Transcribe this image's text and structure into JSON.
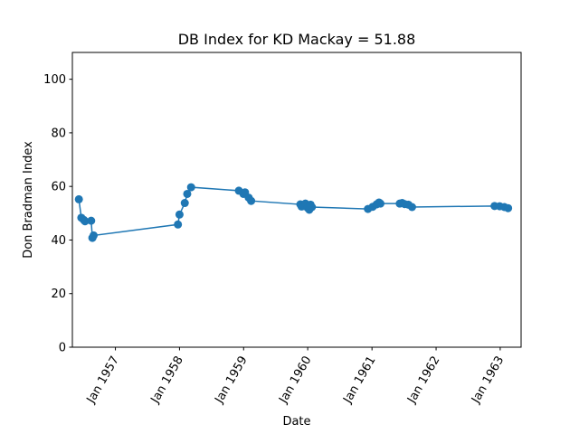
{
  "chart_data": {
    "type": "line",
    "title": "DB Index for KD Mackay = 51.88",
    "xlabel": "Date",
    "ylabel": "Don Bradman Index",
    "ylim": [
      0,
      110
    ],
    "xlim": [
      "1956-05-01",
      "1963-04-30"
    ],
    "yticks": [
      0,
      20,
      40,
      60,
      80,
      100
    ],
    "xticks": [
      {
        "date": "1957-01-01",
        "label": "Jan 1957"
      },
      {
        "date": "1958-01-01",
        "label": "Jan 1958"
      },
      {
        "date": "1959-01-01",
        "label": "Jan 1959"
      },
      {
        "date": "1960-01-01",
        "label": "Jan 1960"
      },
      {
        "date": "1961-01-01",
        "label": "Jan 1961"
      },
      {
        "date": "1962-01-01",
        "label": "Jan 1962"
      },
      {
        "date": "1963-01-01",
        "label": "Jan 1963"
      }
    ],
    "grid": false,
    "color": "#1f77b4",
    "series": [
      {
        "x": [
          "1956-06-07",
          "1956-06-21",
          "1956-07-05",
          "1956-07-12",
          "1956-08-16",
          "1956-08-23",
          "1956-08-30",
          "1957-12-23",
          "1958-01-01",
          "1958-01-31",
          "1958-02-14",
          "1958-03-08",
          "1958-12-05",
          "1958-12-31",
          "1959-01-09",
          "1959-01-30",
          "1959-02-13",
          "1959-11-20",
          "1959-11-27",
          "1959-12-05",
          "1959-12-12",
          "1959-12-19",
          "1960-01-01",
          "1960-01-10",
          "1960-01-17",
          "1960-01-25",
          "1960-12-09",
          "1961-01-05",
          "1961-01-27",
          "1961-02-10",
          "1961-02-18",
          "1961-06-08",
          "1961-06-22",
          "1961-07-06",
          "1961-07-27",
          "1961-08-17",
          "1962-11-30",
          "1962-12-29",
          "1963-01-25",
          "1963-02-15"
        ],
        "y": [
          55.2,
          48.3,
          47.5,
          47.0,
          47.2,
          40.8,
          41.7,
          45.8,
          49.5,
          53.8,
          57.2,
          59.7,
          58.4,
          57.2,
          57.8,
          55.8,
          54.6,
          53.3,
          52.5,
          53.1,
          52.7,
          53.6,
          52.0,
          51.3,
          53.2,
          52.3,
          51.6,
          52.4,
          53.3,
          54.0,
          53.6,
          53.6,
          53.8,
          53.4,
          53.2,
          52.3,
          52.7,
          52.6,
          52.3,
          51.9
        ]
      }
    ]
  }
}
